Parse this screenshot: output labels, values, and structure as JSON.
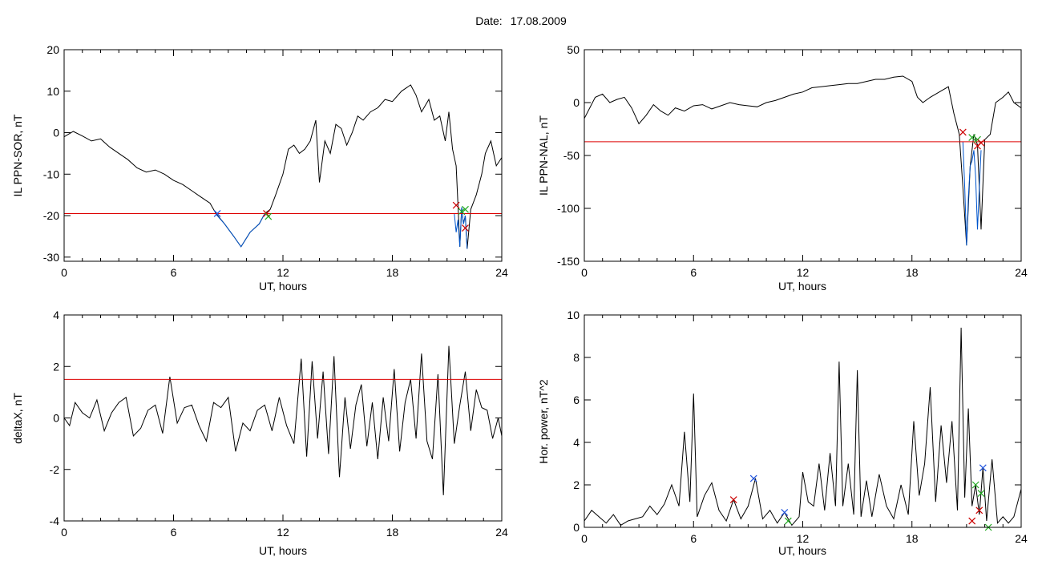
{
  "header": {
    "date_label": "Date:",
    "date_value": "17.08.2009"
  },
  "chart_data": [
    {
      "type": "line",
      "ylabel": "IL PPN-SOR, nT",
      "xlabel": "UT, hours",
      "xlim": [
        0,
        24
      ],
      "ylim": [
        -31,
        20
      ],
      "xticks": [
        0,
        6,
        12,
        18,
        24
      ],
      "yticks": [
        20,
        10,
        0,
        -10,
        -20,
        -30
      ],
      "grid": false,
      "threshold": -19.5,
      "series": [
        {
          "color": "#000000",
          "x": [
            0,
            0.5,
            1,
            1.5,
            2,
            2.5,
            3,
            3.5,
            4,
            4.5,
            5,
            5.5,
            6,
            6.5,
            7,
            7.5,
            8,
            8.3,
            8.8,
            9.3,
            9.7,
            10.2,
            10.7,
            11.0,
            11.3,
            11.6,
            12.0,
            12.3,
            12.6,
            12.9,
            13.2,
            13.5,
            13.8,
            14.0,
            14.3,
            14.6,
            14.9,
            15.2,
            15.5,
            15.8,
            16.1,
            16.4,
            16.8,
            17.2,
            17.6,
            18.0,
            18.5,
            19.0,
            19.3,
            19.6,
            20.0,
            20.3,
            20.6,
            20.9,
            21.1,
            21.3,
            21.5,
            21.6,
            21.7,
            21.8,
            21.9,
            22.0,
            22.1,
            22.3,
            22.6,
            22.9,
            23.1,
            23.4,
            23.7,
            24.0
          ],
          "y": [
            -1,
            0.3,
            -0.8,
            -2,
            -1.5,
            -3.5,
            -5,
            -6.5,
            -8.5,
            -9.5,
            -9,
            -10,
            -11.5,
            -12.5,
            -14,
            -15.5,
            -17,
            -19.3,
            -22,
            -25,
            -27.5,
            -24,
            -22,
            -19.5,
            -18.5,
            -15,
            -10,
            -4,
            -3,
            -5,
            -4,
            -2,
            3,
            -12,
            -2,
            -5,
            2,
            1,
            -3,
            0,
            4,
            3,
            5,
            6,
            8,
            7.5,
            10,
            11.5,
            9,
            5,
            8,
            3,
            4,
            -2,
            5,
            -4,
            -8,
            -17.5,
            -27.5,
            -18,
            -22,
            -20,
            -28,
            -18.5,
            -15,
            -10,
            -5,
            -2,
            -8,
            -6
          ]
        },
        {
          "color": "#0055cc",
          "x": [
            8.3,
            8.8,
            9.3,
            9.7,
            10.2,
            10.7,
            11.0
          ],
          "y": [
            -19.5,
            -22,
            -25,
            -27.5,
            -24,
            -22,
            -19.5
          ]
        },
        {
          "color": "#0055cc",
          "x": [
            21.4,
            21.5,
            21.6,
            21.7,
            21.8,
            21.9,
            22.0,
            22.1
          ],
          "y": [
            -19.5,
            -24,
            -21,
            -27.5,
            -18,
            -22,
            -20,
            -28
          ]
        }
      ],
      "markers": [
        {
          "x": 8.4,
          "y": -19.5,
          "color": "#2255dd"
        },
        {
          "x": 11.1,
          "y": -19.5,
          "color": "#cc0000"
        },
        {
          "x": 11.2,
          "y": -20.2,
          "color": "#22aa22"
        },
        {
          "x": 21.5,
          "y": -17.5,
          "color": "#cc0000"
        },
        {
          "x": 21.8,
          "y": -19,
          "color": "#22aa22"
        },
        {
          "x": 22.0,
          "y": -18.5,
          "color": "#22aa22"
        },
        {
          "x": 22.0,
          "y": -23,
          "color": "#cc0000"
        }
      ]
    },
    {
      "type": "line",
      "ylabel": "IL PPN-NAL, nT",
      "xlabel": "UT, hours",
      "xlim": [
        0,
        24
      ],
      "ylim": [
        -150,
        50
      ],
      "xticks": [
        0,
        6,
        12,
        18,
        24
      ],
      "yticks": [
        50,
        0,
        -50,
        -100,
        -150
      ],
      "grid": false,
      "threshold": -37,
      "series": [
        {
          "color": "#000000",
          "x": [
            0,
            0.3,
            0.6,
            1,
            1.4,
            1.8,
            2.2,
            2.6,
            3,
            3.4,
            3.8,
            4.2,
            4.6,
            5,
            5.5,
            6,
            6.5,
            7,
            7.5,
            8,
            8.5,
            9,
            9.5,
            10,
            10.5,
            11,
            11.5,
            12,
            12.5,
            13,
            13.5,
            14,
            14.5,
            15,
            15.5,
            16,
            16.5,
            17,
            17.5,
            18.0,
            18.3,
            18.6,
            19.0,
            19.5,
            20.0,
            20.3,
            20.6,
            20.8,
            21.0,
            21.2,
            21.4,
            21.6,
            21.8,
            22.0,
            22.3,
            22.6,
            23.0,
            23.3,
            23.6,
            24.0
          ],
          "y": [
            -15,
            -5,
            5,
            8,
            0,
            3,
            5,
            -5,
            -20,
            -12,
            -2,
            -8,
            -12,
            -5,
            -8,
            -3,
            -2,
            -6,
            -3,
            0,
            -2,
            -3,
            -4,
            0,
            2,
            5,
            8,
            10,
            14,
            15,
            16,
            17,
            18,
            18,
            20,
            22,
            22,
            24,
            25,
            20,
            5,
            0,
            5,
            10,
            15,
            -10,
            -30,
            -80,
            -135,
            -60,
            -30,
            -40,
            -120,
            -35,
            -30,
            0,
            5,
            10,
            0,
            -5
          ]
        },
        {
          "color": "#0055cc",
          "x": [
            20.8,
            20.9,
            21.0,
            21.1,
            21.2,
            21.3,
            21.4,
            21.5,
            21.6,
            21.7,
            21.8
          ],
          "y": [
            -37,
            -80,
            -135,
            -90,
            -60,
            -55,
            -45,
            -70,
            -120,
            -80,
            -45
          ]
        }
      ],
      "markers": [
        {
          "x": 20.8,
          "y": -28,
          "color": "#cc0000"
        },
        {
          "x": 21.3,
          "y": -33,
          "color": "#22aa22"
        },
        {
          "x": 21.6,
          "y": -35,
          "color": "#22aa22"
        },
        {
          "x": 21.6,
          "y": -41,
          "color": "#cc0000"
        },
        {
          "x": 21.8,
          "y": -38,
          "color": "#cc0000"
        }
      ]
    },
    {
      "type": "line",
      "ylabel": "deltaX, nT",
      "xlabel": "UT, hours",
      "xlim": [
        0,
        24
      ],
      "ylim": [
        -4,
        4
      ],
      "xticks": [
        0,
        6,
        12,
        18,
        24
      ],
      "yticks": [
        4,
        2,
        0,
        -2,
        -4
      ],
      "grid": false,
      "threshold": 1.5,
      "series": [
        {
          "color": "#000000",
          "x": [
            0,
            0.3,
            0.6,
            1,
            1.4,
            1.8,
            2.2,
            2.6,
            3,
            3.4,
            3.8,
            4.2,
            4.6,
            5,
            5.4,
            5.8,
            6.2,
            6.6,
            7,
            7.4,
            7.8,
            8.2,
            8.6,
            9,
            9.4,
            9.8,
            10.2,
            10.6,
            11,
            11.4,
            11.8,
            12.2,
            12.6,
            13.0,
            13.3,
            13.6,
            13.9,
            14.2,
            14.5,
            14.8,
            15.1,
            15.4,
            15.7,
            16.0,
            16.3,
            16.6,
            16.9,
            17.2,
            17.5,
            17.8,
            18.1,
            18.4,
            18.7,
            19.0,
            19.3,
            19.6,
            19.9,
            20.2,
            20.5,
            20.8,
            21.1,
            21.4,
            21.7,
            22.0,
            22.3,
            22.6,
            22.9,
            23.2,
            23.5,
            23.8,
            24.0
          ],
          "y": [
            0,
            -0.3,
            0.6,
            0.2,
            0,
            0.7,
            -0.5,
            0.2,
            0.6,
            0.8,
            -0.7,
            -0.4,
            0.3,
            0.5,
            -0.6,
            1.6,
            -0.2,
            0.4,
            0.5,
            -0.3,
            -0.9,
            0.6,
            0.4,
            0.8,
            -1.3,
            -0.2,
            -0.5,
            0.3,
            0.5,
            -0.5,
            0.8,
            -0.3,
            -1,
            2.3,
            -1.5,
            2.2,
            -0.8,
            1.8,
            -1.4,
            2.4,
            -2.3,
            0.8,
            -1.2,
            0.5,
            1.3,
            -1.1,
            0.6,
            -1.6,
            0.8,
            -0.9,
            1.9,
            -1.3,
            0.6,
            1.5,
            -0.8,
            2.5,
            -0.9,
            -1.6,
            1.7,
            -3,
            2.8,
            -1,
            0.5,
            1.8,
            -0.5,
            1.1,
            0.4,
            0.3,
            -0.8,
            0,
            -0.7
          ]
        }
      ],
      "markers": []
    },
    {
      "type": "line",
      "ylabel": "Hor. power, nT^2",
      "xlabel": "UT, hours",
      "xlim": [
        0,
        24
      ],
      "ylim": [
        0,
        10
      ],
      "xticks": [
        0,
        6,
        12,
        18,
        24
      ],
      "yticks": [
        10,
        8,
        6,
        4,
        2,
        0
      ],
      "grid": false,
      "series": [
        {
          "color": "#000000",
          "x": [
            0,
            0.4,
            0.8,
            1.2,
            1.6,
            2.0,
            2.4,
            2.8,
            3.2,
            3.6,
            4.0,
            4.4,
            4.8,
            5.2,
            5.5,
            5.8,
            6.0,
            6.2,
            6.6,
            7.0,
            7.4,
            7.8,
            8.2,
            8.6,
            9.0,
            9.4,
            9.8,
            10.2,
            10.6,
            11.0,
            11.4,
            11.8,
            12.0,
            12.3,
            12.6,
            12.9,
            13.2,
            13.5,
            13.8,
            14.0,
            14.2,
            14.5,
            14.8,
            15.0,
            15.2,
            15.5,
            15.8,
            16.2,
            16.6,
            17.0,
            17.4,
            17.8,
            18.1,
            18.4,
            18.7,
            19.0,
            19.3,
            19.6,
            19.9,
            20.2,
            20.5,
            20.7,
            20.9,
            21.1,
            21.3,
            21.5,
            21.7,
            21.9,
            22.1,
            22.4,
            22.7,
            23.0,
            23.3,
            23.6,
            24.0
          ],
          "y": [
            0.3,
            0.8,
            0.5,
            0.2,
            0.6,
            0.1,
            0.3,
            0.4,
            0.5,
            1.0,
            0.6,
            1.1,
            2.0,
            1.0,
            4.5,
            1.2,
            6.3,
            0.5,
            1.5,
            2.1,
            0.8,
            0.3,
            1.3,
            0.4,
            1.0,
            2.3,
            0.4,
            0.8,
            0.2,
            0.7,
            0.1,
            0.5,
            2.6,
            1.2,
            1.0,
            3.0,
            0.8,
            3.5,
            1.0,
            7.8,
            1.0,
            3.0,
            0.6,
            7.4,
            0.5,
            2.2,
            0.5,
            2.5,
            1.0,
            0.4,
            2.0,
            0.6,
            5.0,
            1.5,
            3.0,
            6.6,
            1.2,
            4.8,
            2.1,
            5.0,
            0.8,
            9.4,
            1.4,
            5.6,
            1.0,
            2.0,
            0.6,
            2.8,
            0.3,
            3.2,
            0.2,
            0.5,
            0.2,
            0.5,
            1.8
          ]
        }
      ],
      "markers": [
        {
          "x": 8.2,
          "y": 1.3,
          "color": "#cc0000"
        },
        {
          "x": 9.3,
          "y": 2.3,
          "color": "#2255dd"
        },
        {
          "x": 11.0,
          "y": 0.7,
          "color": "#2255dd"
        },
        {
          "x": 11.2,
          "y": 0.3,
          "color": "#22aa22"
        },
        {
          "x": 21.3,
          "y": 0.3,
          "color": "#cc0000"
        },
        {
          "x": 21.5,
          "y": 2.0,
          "color": "#22aa22"
        },
        {
          "x": 21.7,
          "y": 0.8,
          "color": "#cc0000"
        },
        {
          "x": 21.8,
          "y": 1.6,
          "color": "#22aa22"
        },
        {
          "x": 21.9,
          "y": 2.8,
          "color": "#2255dd"
        },
        {
          "x": 22.2,
          "y": 0.0,
          "color": "#22aa22"
        }
      ]
    }
  ]
}
